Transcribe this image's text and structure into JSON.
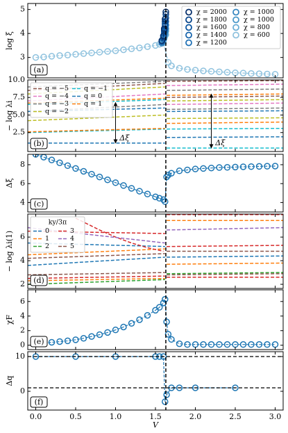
{
  "chart_data": [
    {
      "type": "line",
      "label": "(a)",
      "ylabel": "log ξ",
      "xlim": [
        -0.1,
        3.1
      ],
      "ylim": [
        2.15,
        5.25
      ],
      "yticks": [
        3,
        4,
        5
      ],
      "xticks": [
        {
          "value": 0,
          "label": "0.0"
        },
        {
          "value": 0.5,
          "label": "0.5"
        },
        {
          "value": 1,
          "label": "1.0"
        },
        {
          "value": 1.5,
          "label": "1.5"
        },
        {
          "value": 2,
          "label": "2.0"
        },
        {
          "value": 2.5,
          "label": "2.5"
        },
        {
          "value": 3,
          "label": "3.0"
        }
      ],
      "vline": 1.63,
      "legend": "upper right",
      "legend_columns": 2,
      "series": [
        {
          "name": "χ = 2000",
          "color": "#08306b",
          "x": [
            1.58,
            1.6,
            1.61,
            1.62,
            1.63
          ],
          "values": [
            3.7,
            3.9,
            4.2,
            4.6,
            4.9
          ]
        },
        {
          "name": "χ = 1800",
          "color": "#08458a",
          "x": [
            1.58,
            1.6,
            1.61,
            1.62,
            1.63
          ],
          "values": [
            3.7,
            3.9,
            4.15,
            4.5,
            4.8
          ]
        },
        {
          "name": "χ = 1600",
          "color": "#0b559f",
          "x": [
            1.58,
            1.6,
            1.61,
            1.62,
            1.63
          ],
          "values": [
            3.7,
            3.85,
            4.1,
            4.4,
            4.65
          ]
        },
        {
          "name": "χ = 1400",
          "color": "#1764ab",
          "x": [
            1.58,
            1.6,
            1.61,
            1.62,
            1.63
          ],
          "values": [
            3.65,
            3.8,
            4.05,
            4.3,
            4.5
          ]
        },
        {
          "name": "χ = 1200",
          "color": "#2171b5",
          "x": [
            1.58,
            1.6,
            1.61,
            1.62,
            1.63
          ],
          "values": [
            3.65,
            3.8,
            4.0,
            4.2,
            4.35
          ]
        },
        {
          "name": "χ = 1000",
          "color": "#3787c0",
          "x": [
            1.58,
            1.6,
            1.61,
            1.62,
            1.63
          ],
          "values": [
            3.6,
            3.75,
            3.95,
            4.1,
            4.2
          ]
        },
        {
          "name": "χ = 1000",
          "color": "#4a98c9",
          "x": [
            1.58,
            1.6,
            1.61,
            1.62,
            1.63
          ],
          "values": [
            3.6,
            3.75,
            3.9,
            4.0,
            4.1
          ]
        },
        {
          "name": "χ = 800",
          "color": "#6aaed6",
          "x": [
            1.58,
            1.6,
            1.61,
            1.62,
            1.63
          ],
          "values": [
            3.6,
            3.7,
            3.8,
            3.9,
            3.95
          ]
        },
        {
          "name": "χ = 600",
          "color": "#8fc2de",
          "x": [
            0,
            0.1,
            0.2,
            0.3,
            0.4,
            0.5,
            0.6,
            0.7,
            0.8,
            0.9,
            1.0,
            1.1,
            1.2,
            1.3,
            1.4,
            1.5,
            1.55,
            1.6,
            1.66,
            1.7,
            1.8,
            1.9,
            2.0,
            2.1,
            2.2,
            2.3,
            2.4,
            2.5,
            2.6,
            2.7,
            2.8,
            2.9,
            3.0
          ],
          "values": [
            3.0,
            3.02,
            3.05,
            3.08,
            3.1,
            3.13,
            3.16,
            3.19,
            3.22,
            3.25,
            3.28,
            3.32,
            3.36,
            3.4,
            3.45,
            3.5,
            3.55,
            3.6,
            2.8,
            2.65,
            2.55,
            2.5,
            2.47,
            2.44,
            2.42,
            2.4,
            2.38,
            2.36,
            2.35,
            2.33,
            2.32,
            2.31,
            2.3
          ]
        }
      ]
    },
    {
      "type": "levels",
      "label": "(b)",
      "ylabel": "− log λi",
      "xlim": [
        -0.1,
        3.1
      ],
      "ylim": [
        -0.2,
        10.0
      ],
      "yticks": [
        {
          "value": 2.5,
          "label": "2.5"
        },
        {
          "value": 5,
          "label": "5.0"
        },
        {
          "value": 7.5,
          "label": "7.5"
        },
        {
          "value": 10,
          "label": "10.0"
        }
      ],
      "xticks": [
        0,
        0.5,
        1,
        1.5,
        2,
        2.5,
        3
      ],
      "vline": 1.63,
      "legend": "upper left",
      "legend_columns": 2,
      "x_left": [
        -0.1,
        1.62
      ],
      "x_right": [
        1.64,
        3.1
      ],
      "series": [
        {
          "name": "q = −5",
          "color": "#8c564b",
          "left": [
            [
              8.5,
              9.5
            ]
          ],
          "right": [
            [
              7.5,
              7.7
            ],
            [
              9.8,
              9.9
            ]
          ]
        },
        {
          "name": "q = −4",
          "color": "#e377c2",
          "left": [
            [
              7.0,
              8.0
            ]
          ],
          "right": [
            [
              6.5,
              6.7
            ],
            [
              9.2,
              9.4
            ]
          ]
        },
        {
          "name": "q = −3",
          "color": "#7f7f7f",
          "left": [
            [
              5.5,
              6.5
            ],
            [
              9.0,
              9.8
            ]
          ],
          "right": [
            [
              5.8,
              6.0
            ],
            [
              8.5,
              8.7
            ]
          ]
        },
        {
          "name": "q = −2",
          "color": "#bcbd22",
          "left": [
            [
              4.2,
              5.0
            ],
            [
              8.0,
              9.0
            ]
          ],
          "right": [
            [
              4.5,
              4.6
            ],
            [
              7.0,
              7.2
            ]
          ]
        },
        {
          "name": "q = −1",
          "color": "#17becf",
          "left": [
            [
              2.5,
              3.0
            ],
            [
              6.5,
              7.2
            ]
          ],
          "right": [
            [
              0.3,
              0.3
            ],
            [
              3.0,
              3.1
            ]
          ]
        },
        {
          "name": "q = 0",
          "color": "#1f77b4",
          "left": [
            [
              1.0,
              1.0
            ],
            [
              5.5,
              6.0
            ]
          ],
          "right": [
            [
              1.8,
              1.9
            ],
            [
              5.5,
              5.6
            ]
          ]
        },
        {
          "name": "q = 1",
          "color": "#ff7f0e",
          "left": [
            [
              2.6,
              3.1
            ],
            [
              6.7,
              7.4
            ]
          ],
          "right": [
            [
              3.8,
              4.0
            ],
            [
              7.8,
              8.0
            ]
          ]
        }
      ],
      "arrows": [
        {
          "x": 1.0,
          "y": [
            1.0,
            6.8
          ]
        },
        {
          "x": 2.2,
          "y": [
            0.3,
            8.0
          ]
        }
      ],
      "annotations": [
        {
          "text": "Δξ",
          "x": 1.05,
          "y": 1.7
        },
        {
          "text": "Δξ",
          "x": 2.25,
          "y": 1.0
        }
      ]
    },
    {
      "type": "line",
      "label": "(c)",
      "ylabel": "Δξ",
      "xlim": [
        -0.1,
        3.1
      ],
      "ylim": [
        3.0,
        9.1
      ],
      "yticks": [
        4,
        6,
        8
      ],
      "xticks": [
        0,
        0.5,
        1,
        1.5,
        2,
        2.5,
        3
      ],
      "vline": 1.63,
      "color": "#1f77b4",
      "x": [
        0,
        0.1,
        0.2,
        0.3,
        0.4,
        0.5,
        0.6,
        0.7,
        0.8,
        0.9,
        1.0,
        1.1,
        1.2,
        1.3,
        1.4,
        1.5,
        1.55,
        1.6,
        1.62,
        1.64,
        1.66,
        1.7,
        1.8,
        1.9,
        2.0,
        2.1,
        2.2,
        2.3,
        2.4,
        2.5,
        2.6,
        2.7,
        2.8,
        2.9,
        3.0
      ],
      "values": [
        9.1,
        8.8,
        8.5,
        8.2,
        7.9,
        7.6,
        7.3,
        7.0,
        6.7,
        6.4,
        6.1,
        5.8,
        5.5,
        5.2,
        4.9,
        4.6,
        4.45,
        4.3,
        4.1,
        6.7,
        6.9,
        7.1,
        7.35,
        7.45,
        7.55,
        7.6,
        7.65,
        7.7,
        7.72,
        7.75,
        7.78,
        7.8,
        7.82,
        7.84,
        7.85
      ]
    },
    {
      "type": "levels",
      "label": "(d)",
      "ylabel": "− log λi(1)",
      "xlim": [
        -0.1,
        3.1
      ],
      "ylim": [
        1.65,
        7.95
      ],
      "yticks": [
        2,
        4,
        6
      ],
      "xticks": [
        0,
        0.5,
        1,
        1.5,
        2,
        2.5,
        3
      ],
      "vline": 1.63,
      "legend": "upper left",
      "legend_columns": 2,
      "legend_title": "ky/3π",
      "x_left": [
        -0.1,
        1.62
      ],
      "x_right": [
        1.64,
        3.1
      ],
      "series": [
        {
          "name": "0",
          "color": "#1f77b4",
          "left": [
            [
              3.6,
              4.3
            ],
            [
              5.5,
              5.2
            ]
          ],
          "right": [
            [
              4.3,
              4.4
            ]
          ]
        },
        {
          "name": "1",
          "color": "#ff7f0e",
          "left": [
            [
              2.3,
              2.5
            ],
            [
              4.5,
              5.0
            ]
          ],
          "right": [
            [
              3.7,
              3.8
            ],
            [
              7.4,
              7.4
            ]
          ]
        },
        {
          "name": "2",
          "color": "#2ca02c",
          "left": [
            [
              2.0,
              2.4
            ]
          ],
          "right": [
            [
              2.9,
              3.0
            ]
          ]
        },
        {
          "name": "3",
          "color": "#d62728",
          "left": [
            [
              2.5,
              2.7
            ],
            [
              6.5,
              6.3
            ]
          ],
          "right": [
            [
              2.6,
              2.6
            ],
            [
              5.2,
              5.3
            ],
            [
              7.9,
              7.9
            ]
          ],
          "curve": {
            "x": [
              0.5,
              0.8,
              1.0,
              1.2,
              1.4,
              1.6
            ],
            "values": [
              7.6,
              6.6,
              6.0,
              5.5,
              5.1,
              4.8
            ]
          }
        },
        {
          "name": "4",
          "color": "#9467bd",
          "left": [
            [
              6.8,
              5.5
            ]
          ],
          "right": [
            [
              6.6,
              6.8
            ]
          ]
        },
        {
          "name": "5",
          "color": "#8c564b",
          "left": [
            [
              2.8,
              3.0
            ],
            [
              4.2,
              4.6
            ]
          ],
          "right": [
            [
              2.8,
              2.9
            ],
            [
              4.8,
              4.8
            ]
          ]
        }
      ]
    },
    {
      "type": "line",
      "label": "(e)",
      "ylabel": "χF",
      "xlim": [
        -0.1,
        3.1
      ],
      "ylim": [
        -0.6,
        7.6
      ],
      "yticks": [
        0,
        2,
        4,
        6
      ],
      "xticks": [
        0,
        0.5,
        1,
        1.5,
        2,
        2.5,
        3
      ],
      "vline": 1.63,
      "color": "#1f77b4",
      "x": [
        0,
        0.1,
        0.2,
        0.3,
        0.4,
        0.5,
        0.6,
        0.7,
        0.8,
        0.9,
        1.0,
        1.1,
        1.2,
        1.3,
        1.4,
        1.5,
        1.55,
        1.6,
        1.62,
        1.64,
        1.66,
        1.7,
        1.8,
        1.9,
        2.0,
        2.1,
        2.2,
        2.3,
        2.4,
        2.5,
        2.6,
        2.7,
        2.8,
        2.9,
        3.0
      ],
      "values": [
        0.3,
        0.35,
        0.4,
        0.5,
        0.6,
        0.75,
        0.95,
        1.2,
        1.45,
        1.75,
        2.1,
        2.5,
        3.0,
        3.5,
        4.1,
        4.8,
        5.2,
        5.8,
        6.3,
        3.2,
        1.5,
        0.8,
        0.2,
        0.1,
        0.1,
        0.1,
        0.1,
        0.1,
        0.1,
        0.1,
        0.1,
        0.1,
        0.1,
        0.1,
        0.1
      ]
    },
    {
      "type": "line",
      "label": "(f)",
      "ylabel": "Δq",
      "xlabel": "V",
      "xlim": [
        -0.1,
        3.1
      ],
      "ylim": [
        -5.4,
        11.4
      ],
      "yticks": [
        0,
        10
      ],
      "xticks": [
        {
          "value": 0,
          "label": "0.0"
        },
        {
          "value": 0.5,
          "label": "0.5"
        },
        {
          "value": 1,
          "label": "1.0"
        },
        {
          "value": 1.5,
          "label": "1.5"
        },
        {
          "value": 2,
          "label": "2.0"
        },
        {
          "value": 2.5,
          "label": "2.5"
        },
        {
          "value": 3,
          "label": "3.0"
        }
      ],
      "vline": 1.63,
      "hlines": [
        10,
        1
      ],
      "color": "#1f77b4",
      "x": [
        0,
        0.5,
        1.0,
        1.5,
        1.55,
        1.6,
        1.62,
        1.64,
        1.7,
        1.8,
        2.0,
        2.5
      ],
      "values": [
        10,
        10,
        10,
        10,
        10,
        10,
        -3,
        -1,
        1,
        1,
        1,
        1
      ]
    }
  ]
}
